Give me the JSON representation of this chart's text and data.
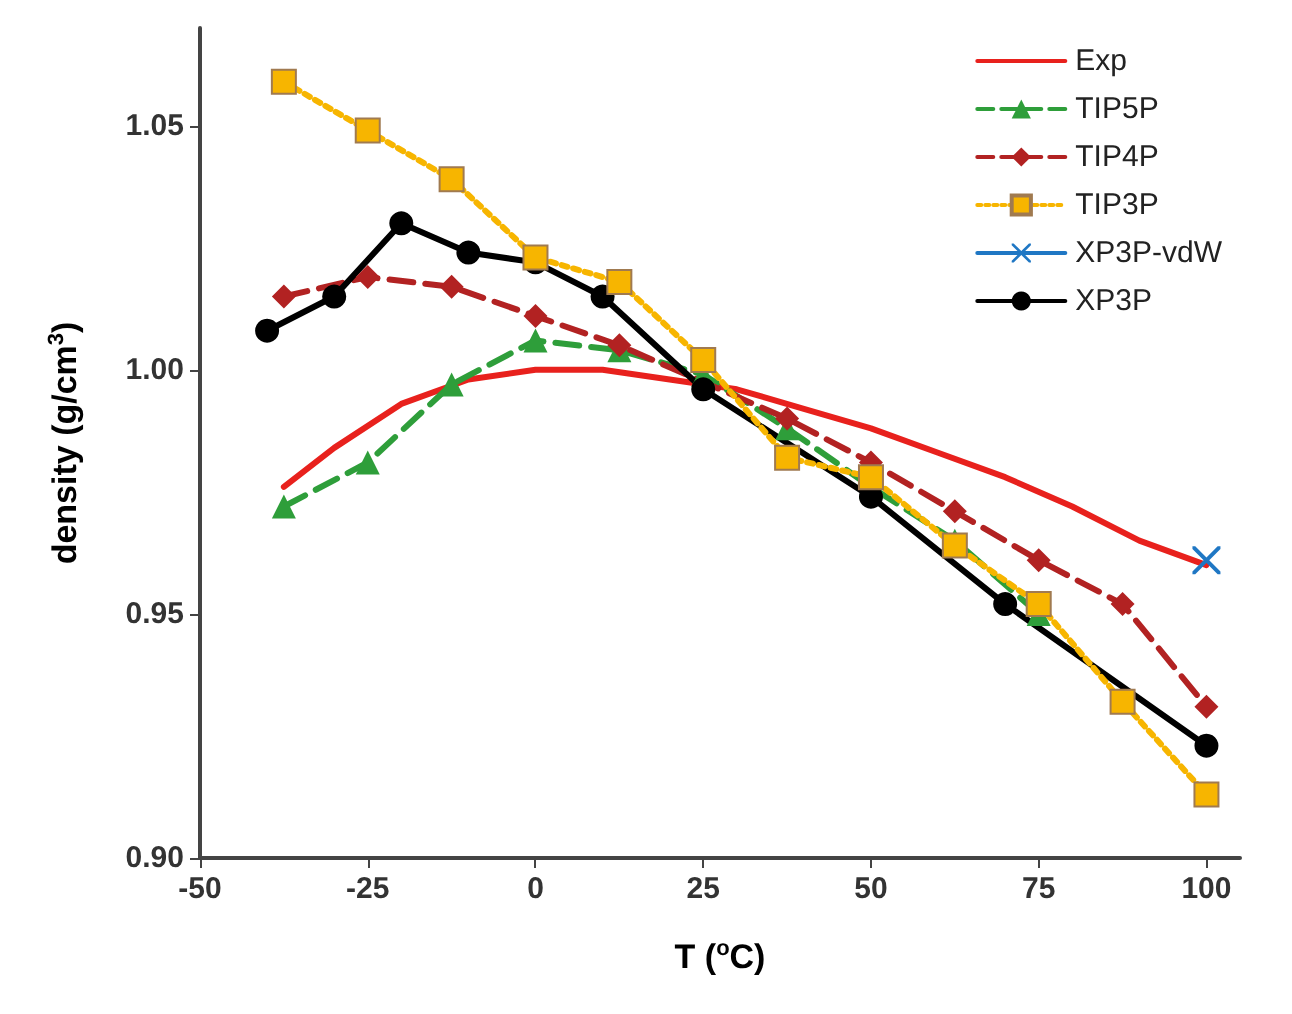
{
  "chart_data": {
    "type": "line",
    "xlabel": "T ($^{o}$C)",
    "ylabel": "density (g/cm$^{3}$)",
    "xlim": [
      -50,
      105
    ],
    "xticks": [
      -50,
      -25,
      0,
      25,
      50,
      75,
      100
    ],
    "ylim": [
      0.9,
      1.07
    ],
    "yticks": [
      {
        "value": 0.9,
        "label": "0.90"
      },
      {
        "value": 0.95,
        "label": "0.95"
      },
      {
        "value": 1.0,
        "label": "1.00"
      },
      {
        "value": 1.05,
        "label": "1.05"
      }
    ],
    "grid": false,
    "legend": "top right",
    "series": [
      {
        "name": "Exp",
        "color": "#e8211d",
        "marker": "none",
        "line_style": "solid",
        "x": [
          -37.5,
          -30,
          -20,
          -10,
          0,
          10,
          20,
          30,
          40,
          50,
          60,
          70,
          80,
          90,
          100
        ],
        "values": [
          0.976,
          0.984,
          0.993,
          0.998,
          1.0,
          1.0,
          0.998,
          0.996,
          0.992,
          0.988,
          0.983,
          0.978,
          0.972,
          0.965,
          0.96
        ]
      },
      {
        "name": "TIP5P",
        "color": "#2e9e3a",
        "marker": "triangle",
        "line_style": "dashed",
        "x": [
          -37.5,
          -25,
          -12.5,
          0,
          12.5,
          25,
          37.5,
          50,
          62.5,
          75
        ],
        "values": [
          0.972,
          0.981,
          0.997,
          1.006,
          1.004,
          0.999,
          0.988,
          0.976,
          0.965,
          0.95
        ]
      },
      {
        "name": "TIP4P",
        "color": "#b22222",
        "marker": "diamond",
        "line_style": "dashed",
        "x": [
          -37.5,
          -25,
          -12.5,
          0,
          12.5,
          25,
          37.5,
          50,
          62.5,
          75,
          87.5,
          100
        ],
        "values": [
          1.015,
          1.019,
          1.017,
          1.011,
          1.005,
          null,
          0.99,
          0.981,
          0.971,
          0.961,
          0.952,
          0.931
        ]
      },
      {
        "name": "TIP3P",
        "color": "#f7b500",
        "marker": "square",
        "line_style": "dotted",
        "x": [
          -37.5,
          -25,
          -12.5,
          0,
          12.5,
          25,
          37.5,
          50,
          62.5,
          75,
          87.5,
          100
        ],
        "values": [
          1.059,
          1.049,
          1.039,
          1.023,
          1.018,
          1.002,
          0.982,
          0.978,
          0.964,
          0.952,
          0.932,
          0.913
        ]
      },
      {
        "name": "XP3P-vdW",
        "color": "#1f77c4",
        "marker": "cross",
        "line_style": "solid",
        "x": [
          100
        ],
        "values": [
          0.961
        ]
      },
      {
        "name": "XP3P",
        "color": "#000000",
        "marker": "circle",
        "line_style": "solid",
        "x": [
          -40,
          -30,
          -20,
          -10,
          0,
          10,
          25,
          50,
          70,
          100
        ],
        "values": [
          1.008,
          1.015,
          1.03,
          1.024,
          1.022,
          1.015,
          0.996,
          0.974,
          0.952,
          0.923
        ]
      }
    ]
  }
}
